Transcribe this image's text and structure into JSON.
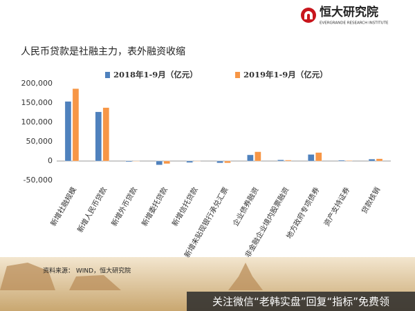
{
  "header": {
    "logo_name": "恒大研究院",
    "logo_subtitle": "EVERGRANDE RESEARCH INSTITUTE"
  },
  "chart_data": {
    "type": "bar",
    "title": "人民币贷款是社融主力，表外融资收缩",
    "categories": [
      "新增社融规模",
      "新增人民币贷款",
      "新增外币贷款",
      "新增委托贷款",
      "新增信托贷款",
      "新增未贴现银行承兑汇票",
      "企业债券融资",
      "非金融企业境内股票融资",
      "地方政府专项债券",
      "资产支持证券",
      "贷款核销"
    ],
    "series": [
      {
        "name": "2018年1-9月（亿元）",
        "color": "#4f81bd",
        "values": [
          154000,
          127000,
          -2000,
          -10000,
          -4000,
          -5000,
          16000,
          3000,
          17000,
          2000,
          5000
        ]
      },
      {
        "name": "2019年1-9月（亿元）",
        "color": "#f79646",
        "values": [
          187000,
          138000,
          -1000,
          -7000,
          -1000,
          -5000,
          24000,
          2500,
          22000,
          1500,
          6000
        ]
      }
    ],
    "ylim": [
      -50000,
      200000
    ],
    "yticks": [
      {
        "value": -50000,
        "label": "-50,000"
      },
      0,
      {
        "value": 50000,
        "label": "50,000"
      },
      {
        "value": 100000,
        "label": "100,000"
      },
      {
        "value": 150000,
        "label": "150,000"
      },
      {
        "value": 200000,
        "label": "200,000"
      }
    ],
    "grid": false,
    "legend": "top"
  },
  "footer": {
    "source": "资料来源： WIND，恒大研究院",
    "watermark": "关注微信“老韩实盘”回复“指标”免费领"
  }
}
